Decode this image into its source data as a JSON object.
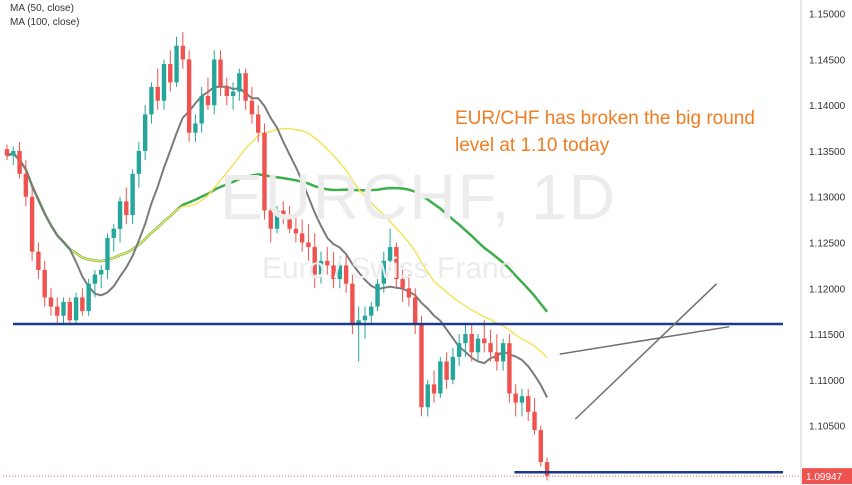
{
  "legend": {
    "ma50": "MA (50, close)",
    "ma100": "MA (100, close)"
  },
  "watermark": {
    "symbol": "EURCHF, 1D",
    "name": "Euro / Swiss Franc"
  },
  "annotation": "EUR/CHF has broken the big round level at 1.10 today",
  "colors": {
    "up": "#26a69a",
    "down": "#ef5350",
    "ma_short": "#7b7b7b",
    "ma50": "#f5e35a",
    "ma100": "#3cae4a",
    "level_line": "#1a3a8c",
    "channel": "#707070",
    "annotation": "#f07d22",
    "price_label": "#ef5350",
    "axis_text": "#333333"
  },
  "chart_data": {
    "type": "candlestick",
    "ylim": [
      1.0985,
      1.1515
    ],
    "y_ticks": [
      "1.15000",
      "1.14500",
      "1.14000",
      "1.13500",
      "1.13000",
      "1.12500",
      "1.12000",
      "1.11500",
      "1.11000",
      "1.10500",
      "1.10000"
    ],
    "last_price": "1.09947",
    "horizontal_levels": [
      {
        "name": "support-1116",
        "y": 1.1161,
        "from": 0,
        "to": 128
      },
      {
        "name": "level-110",
        "y": 1.0999,
        "from": 80,
        "to": 128
      }
    ],
    "channel_lines": [
      {
        "from": [
          90.5,
          1.1057
        ],
        "to": [
          113,
          1.1205
        ]
      },
      {
        "from": [
          88,
          1.1128
        ],
        "to": [
          115,
          1.1158
        ]
      }
    ],
    "bars": [
      [
        1.1352,
        1.1357,
        1.134,
        1.1345
      ],
      [
        1.1345,
        1.1355,
        1.1335,
        1.135
      ],
      [
        1.135,
        1.136,
        1.132,
        1.1325
      ],
      [
        1.1325,
        1.134,
        1.129,
        1.13
      ],
      [
        1.13,
        1.131,
        1.123,
        1.124
      ],
      [
        1.124,
        1.125,
        1.121,
        1.122
      ],
      [
        1.122,
        1.123,
        1.118,
        1.119
      ],
      [
        1.119,
        1.12,
        1.117,
        1.118
      ],
      [
        1.118,
        1.119,
        1.116,
        1.117
      ],
      [
        1.117,
        1.119,
        1.116,
        1.1185
      ],
      [
        1.1185,
        1.119,
        1.116,
        1.1165
      ],
      [
        1.1165,
        1.1195,
        1.116,
        1.119
      ],
      [
        1.119,
        1.12,
        1.117,
        1.1175
      ],
      [
        1.1175,
        1.121,
        1.117,
        1.1205
      ],
      [
        1.1205,
        1.122,
        1.119,
        1.1215
      ],
      [
        1.1215,
        1.1225,
        1.12,
        1.122
      ],
      [
        1.122,
        1.126,
        1.121,
        1.1255
      ],
      [
        1.1255,
        1.127,
        1.124,
        1.1265
      ],
      [
        1.1265,
        1.13,
        1.125,
        1.1295
      ],
      [
        1.1295,
        1.131,
        1.127,
        1.128
      ],
      [
        1.128,
        1.133,
        1.127,
        1.1325
      ],
      [
        1.1325,
        1.136,
        1.131,
        1.135
      ],
      [
        1.135,
        1.14,
        1.134,
        1.139
      ],
      [
        1.139,
        1.1425,
        1.138,
        1.142
      ],
      [
        1.142,
        1.144,
        1.1395,
        1.1405
      ],
      [
        1.1405,
        1.145,
        1.1395,
        1.1445
      ],
      [
        1.1445,
        1.146,
        1.1415,
        1.1425
      ],
      [
        1.1425,
        1.1475,
        1.142,
        1.1465
      ],
      [
        1.1465,
        1.148,
        1.144,
        1.145
      ],
      [
        1.145,
        1.146,
        1.136,
        1.137
      ],
      [
        1.137,
        1.139,
        1.136,
        1.138
      ],
      [
        1.138,
        1.142,
        1.137,
        1.141
      ],
      [
        1.141,
        1.143,
        1.1395,
        1.14
      ],
      [
        1.14,
        1.146,
        1.139,
        1.145
      ],
      [
        1.145,
        1.146,
        1.141,
        1.142
      ],
      [
        1.142,
        1.143,
        1.14,
        1.141
      ],
      [
        1.141,
        1.1425,
        1.1395,
        1.1415
      ],
      [
        1.1415,
        1.144,
        1.1405,
        1.1435
      ],
      [
        1.1435,
        1.144,
        1.1395,
        1.1405
      ],
      [
        1.1405,
        1.142,
        1.138,
        1.139
      ],
      [
        1.139,
        1.14,
        1.136,
        1.137
      ],
      [
        1.137,
        1.138,
        1.1275,
        1.1285
      ],
      [
        1.1285,
        1.1295,
        1.125,
        1.1265
      ],
      [
        1.1265,
        1.129,
        1.126,
        1.1285
      ],
      [
        1.1285,
        1.1295,
        1.127,
        1.128
      ],
      [
        1.128,
        1.129,
        1.126,
        1.1265
      ],
      [
        1.1265,
        1.128,
        1.125,
        1.126
      ],
      [
        1.126,
        1.1275,
        1.124,
        1.125
      ],
      [
        1.125,
        1.127,
        1.123,
        1.1245
      ],
      [
        1.1245,
        1.126,
        1.12,
        1.1215
      ],
      [
        1.1215,
        1.124,
        1.1205,
        1.123
      ],
      [
        1.123,
        1.1245,
        1.1215,
        1.1225
      ],
      [
        1.1225,
        1.124,
        1.12,
        1.121
      ],
      [
        1.121,
        1.1235,
        1.12,
        1.1225
      ],
      [
        1.1225,
        1.1235,
        1.1195,
        1.1205
      ],
      [
        1.1205,
        1.1215,
        1.115,
        1.116
      ],
      [
        1.116,
        1.118,
        1.112,
        1.1165
      ],
      [
        1.1165,
        1.118,
        1.1145,
        1.117
      ],
      [
        1.117,
        1.1185,
        1.116,
        1.118
      ],
      [
        1.118,
        1.121,
        1.1175,
        1.1205
      ],
      [
        1.1205,
        1.124,
        1.1195,
        1.123
      ],
      [
        1.123,
        1.1265,
        1.122,
        1.1245
      ],
      [
        1.1245,
        1.125,
        1.12,
        1.121
      ],
      [
        1.121,
        1.1225,
        1.1185,
        1.12
      ],
      [
        1.12,
        1.1215,
        1.118,
        1.119
      ],
      [
        1.119,
        1.12,
        1.115,
        1.116
      ],
      [
        1.116,
        1.117,
        1.106,
        1.107
      ],
      [
        1.107,
        1.11,
        1.106,
        1.1095
      ],
      [
        1.1095,
        1.111,
        1.1075,
        1.1085
      ],
      [
        1.1085,
        1.1125,
        1.108,
        1.112
      ],
      [
        1.112,
        1.113,
        1.109,
        1.11
      ],
      [
        1.11,
        1.1135,
        1.1095,
        1.1125
      ],
      [
        1.1125,
        1.115,
        1.1115,
        1.114
      ],
      [
        1.114,
        1.116,
        1.1125,
        1.115
      ],
      [
        1.115,
        1.116,
        1.112,
        1.113
      ],
      [
        1.113,
        1.115,
        1.112,
        1.1145
      ],
      [
        1.1145,
        1.1165,
        1.113,
        1.114
      ],
      [
        1.114,
        1.1155,
        1.112,
        1.113
      ],
      [
        1.113,
        1.115,
        1.111,
        1.112
      ],
      [
        1.112,
        1.1145,
        1.111,
        1.114
      ],
      [
        1.114,
        1.115,
        1.1075,
        1.1085
      ],
      [
        1.1085,
        1.1095,
        1.106,
        1.1075
      ],
      [
        1.1075,
        1.109,
        1.106,
        1.1082
      ],
      [
        1.1082,
        1.109,
        1.1055,
        1.1065
      ],
      [
        1.1065,
        1.108,
        1.104,
        1.1045
      ],
      [
        1.1045,
        1.105,
        1.1005,
        1.101
      ],
      [
        1.101,
        1.1015,
        1.099,
        1.0995
      ]
    ],
    "bar_range": [
      0,
      128
    ]
  }
}
